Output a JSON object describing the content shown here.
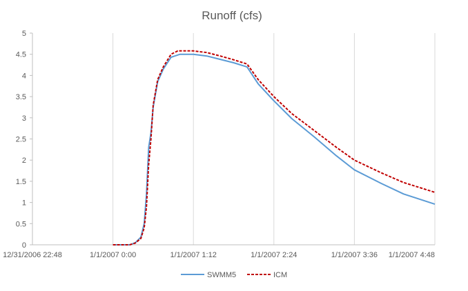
{
  "chart_data": {
    "type": "line",
    "title": "Runoff (cfs)",
    "xlabel": "",
    "ylabel": "",
    "ylim": [
      0,
      5
    ],
    "yticks": [
      "0",
      "0.5",
      "1",
      "1.5",
      "2",
      "2.5",
      "3",
      "3.5",
      "4",
      "4.5",
      "5"
    ],
    "x_unit": "datetime",
    "x_axis_start": "12/31/2006 22:48",
    "x_axis_end": "1/1/2007 4:48",
    "xticks": [
      "12/31/2006 22:48",
      "1/1/2007 0:00",
      "1/1/2007 1:12",
      "1/1/2007 2:24",
      "1/1/2007 3:36",
      "1/1/2007 4:48"
    ],
    "grid": "vertical",
    "legend_position": "bottom",
    "series": [
      {
        "name": "SWMM5",
        "color": "#5b9bd5",
        "style": "solid",
        "points": [
          [
            "1/1/2007 0:00",
            0
          ],
          [
            "1/1/2007 0:15",
            0
          ],
          [
            "1/1/2007 0:20",
            0.05
          ],
          [
            "1/1/2007 0:25",
            0.18
          ],
          [
            "1/1/2007 0:28",
            0.5
          ],
          [
            "1/1/2007 0:30",
            1.2
          ],
          [
            "1/1/2007 0:32",
            2.3
          ],
          [
            "1/1/2007 0:34",
            2.65
          ],
          [
            "1/1/2007 0:36",
            3.25
          ],
          [
            "1/1/2007 0:40",
            3.85
          ],
          [
            "1/1/2007 0:45",
            4.15
          ],
          [
            "1/1/2007 0:52",
            4.43
          ],
          [
            "1/1/2007 1:00",
            4.5
          ],
          [
            "1/1/2007 1:12",
            4.5
          ],
          [
            "1/1/2007 1:24",
            4.46
          ],
          [
            "1/1/2007 1:36",
            4.38
          ],
          [
            "1/1/2007 1:48",
            4.3
          ],
          [
            "1/1/2007 2:00",
            4.2
          ],
          [
            "1/1/2007 2:10",
            3.8
          ],
          [
            "1/1/2007 2:24",
            3.4
          ],
          [
            "1/1/2007 2:40",
            2.98
          ],
          [
            "1/1/2007 3:00",
            2.55
          ],
          [
            "1/1/2007 3:20",
            2.1
          ],
          [
            "1/1/2007 3:36",
            1.77
          ],
          [
            "1/1/2007 4:00",
            1.45
          ],
          [
            "1/1/2007 4:20",
            1.2
          ],
          [
            "1/1/2007 4:48",
            0.96
          ]
        ]
      },
      {
        "name": "ICM",
        "color": "#c00000",
        "style": "dashed",
        "points": [
          [
            "1/1/2007 0:00",
            0
          ],
          [
            "1/1/2007 0:15",
            0
          ],
          [
            "1/1/2007 0:20",
            0.04
          ],
          [
            "1/1/2007 0:25",
            0.15
          ],
          [
            "1/1/2007 0:28",
            0.4
          ],
          [
            "1/1/2007 0:30",
            0.9
          ],
          [
            "1/1/2007 0:32",
            1.9
          ],
          [
            "1/1/2007 0:34",
            2.5
          ],
          [
            "1/1/2007 0:36",
            3.3
          ],
          [
            "1/1/2007 0:40",
            3.9
          ],
          [
            "1/1/2007 0:45",
            4.2
          ],
          [
            "1/1/2007 0:52",
            4.5
          ],
          [
            "1/1/2007 0:58",
            4.58
          ],
          [
            "1/1/2007 1:12",
            4.58
          ],
          [
            "1/1/2007 1:24",
            4.54
          ],
          [
            "1/1/2007 1:36",
            4.46
          ],
          [
            "1/1/2007 1:48",
            4.37
          ],
          [
            "1/1/2007 2:00",
            4.27
          ],
          [
            "1/1/2007 2:10",
            3.9
          ],
          [
            "1/1/2007 2:24",
            3.5
          ],
          [
            "1/1/2007 2:40",
            3.1
          ],
          [
            "1/1/2007 3:00",
            2.7
          ],
          [
            "1/1/2007 3:20",
            2.3
          ],
          [
            "1/1/2007 3:36",
            2.0
          ],
          [
            "1/1/2007 4:00",
            1.7
          ],
          [
            "1/1/2007 4:20",
            1.47
          ],
          [
            "1/1/2007 4:48",
            1.24
          ]
        ]
      }
    ]
  }
}
